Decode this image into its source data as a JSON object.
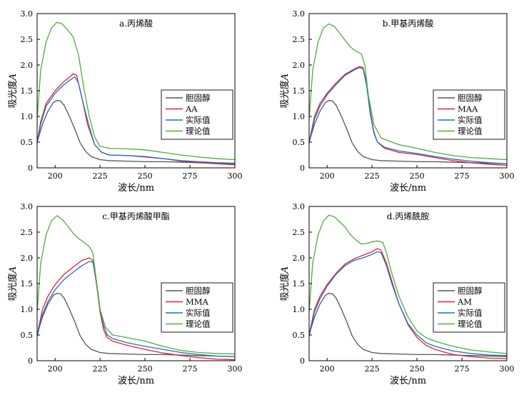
{
  "figure": {
    "colors": {
      "cholesterol": "#555555",
      "monomer": "#e8202a",
      "actual": "#1f6fc4",
      "theoretical": "#4caf3c",
      "axis": "#000000"
    }
  },
  "chart_data": [
    {
      "type": "line",
      "title": "a.丙烯酸",
      "xlabel": "波长/nm",
      "ylabel_text": "吸光度",
      "ylabel_var": "A",
      "xlim": [
        190,
        300
      ],
      "ylim": [
        0,
        3.0
      ],
      "xticks": [
        "200",
        "225",
        "250",
        "275",
        "300"
      ],
      "yticks": [
        "0",
        "0.5",
        "1.0",
        "1.5",
        "2.0",
        "2.5",
        "3.0"
      ],
      "legend_position": "center-right",
      "series": [
        {
          "name": "胆固醇",
          "color_key": "cholesterol",
          "x": [
            190,
            193,
            196,
            199,
            201,
            203,
            205,
            208,
            211,
            214,
            217,
            220,
            225,
            230,
            240,
            250,
            260,
            270,
            280,
            290,
            300
          ],
          "y": [
            0.5,
            0.85,
            1.1,
            1.27,
            1.31,
            1.3,
            1.22,
            1.0,
            0.75,
            0.48,
            0.32,
            0.22,
            0.16,
            0.14,
            0.13,
            0.12,
            0.12,
            0.11,
            0.1,
            0.09,
            0.08
          ]
        },
        {
          "name": "AA",
          "color_key": "monomer",
          "x": [
            190,
            192,
            195,
            200,
            205,
            208,
            210,
            212,
            215,
            218,
            222,
            226,
            230,
            240,
            250,
            260,
            270,
            280,
            290,
            300
          ],
          "y": [
            0.5,
            0.9,
            1.25,
            1.5,
            1.68,
            1.76,
            1.83,
            1.8,
            1.35,
            0.85,
            0.45,
            0.3,
            0.25,
            0.24,
            0.22,
            0.18,
            0.13,
            0.1,
            0.08,
            0.06
          ]
        },
        {
          "name": "实际值",
          "color_key": "actual",
          "x": [
            190,
            192,
            195,
            200,
            205,
            208,
            211,
            213,
            216,
            219,
            222,
            226,
            230,
            240,
            250,
            260,
            270,
            280,
            290,
            300
          ],
          "y": [
            0.48,
            0.85,
            1.2,
            1.45,
            1.62,
            1.7,
            1.77,
            1.65,
            1.2,
            0.8,
            0.45,
            0.3,
            0.25,
            0.24,
            0.21,
            0.18,
            0.14,
            0.12,
            0.1,
            0.09
          ]
        },
        {
          "name": "理论值",
          "color_key": "theoretical",
          "x": [
            190,
            192,
            195,
            198,
            201,
            204,
            207,
            210,
            213,
            216,
            219,
            222,
            225,
            230,
            240,
            250,
            260,
            270,
            280,
            290,
            300
          ],
          "y": [
            0.95,
            1.9,
            2.45,
            2.72,
            2.83,
            2.8,
            2.68,
            2.55,
            2.2,
            1.55,
            1.0,
            0.6,
            0.42,
            0.38,
            0.37,
            0.35,
            0.3,
            0.25,
            0.21,
            0.18,
            0.16
          ]
        }
      ]
    },
    {
      "type": "line",
      "title": "b.甲基丙烯酸",
      "xlabel": "波长/nm",
      "ylabel_text": "吸光度",
      "ylabel_var": "A",
      "xlim": [
        190,
        300
      ],
      "ylim": [
        0,
        3.0
      ],
      "xticks": [
        "200",
        "225",
        "250",
        "275",
        "300"
      ],
      "yticks": [
        "0",
        "0.5",
        "1.0",
        "1.5",
        "2.0",
        "2.5",
        "3.0"
      ],
      "legend_position": "center-right",
      "series": [
        {
          "name": "胆固醇",
          "color_key": "cholesterol",
          "x": [
            190,
            193,
            196,
            199,
            201,
            203,
            205,
            208,
            211,
            214,
            217,
            220,
            225,
            230,
            240,
            250,
            260,
            270,
            280,
            290,
            300
          ],
          "y": [
            0.5,
            0.85,
            1.1,
            1.27,
            1.31,
            1.3,
            1.22,
            1.0,
            0.75,
            0.48,
            0.32,
            0.22,
            0.16,
            0.14,
            0.13,
            0.12,
            0.12,
            0.11,
            0.1,
            0.09,
            0.08
          ]
        },
        {
          "name": "MAA",
          "color_key": "monomer",
          "x": [
            190,
            193,
            196,
            200,
            205,
            210,
            215,
            218,
            220,
            222,
            224,
            226,
            228,
            232,
            240,
            250,
            260,
            270,
            280,
            290,
            300
          ],
          "y": [
            0.5,
            1.0,
            1.25,
            1.45,
            1.65,
            1.82,
            1.92,
            1.97,
            1.95,
            1.65,
            1.1,
            0.7,
            0.5,
            0.38,
            0.3,
            0.26,
            0.2,
            0.14,
            0.1,
            0.07,
            0.05
          ]
        },
        {
          "name": "实际值",
          "color_key": "actual",
          "x": [
            190,
            193,
            196,
            200,
            205,
            210,
            215,
            218,
            220,
            222,
            224,
            226,
            228,
            232,
            240,
            250,
            260,
            270,
            280,
            290,
            300
          ],
          "y": [
            0.48,
            0.95,
            1.2,
            1.42,
            1.62,
            1.8,
            1.9,
            1.95,
            1.93,
            1.6,
            1.05,
            0.68,
            0.5,
            0.4,
            0.33,
            0.28,
            0.22,
            0.17,
            0.13,
            0.1,
            0.08
          ]
        },
        {
          "name": "理论值",
          "color_key": "theoretical",
          "x": [
            190,
            192,
            195,
            198,
            201,
            204,
            207,
            210,
            213,
            216,
            219,
            221,
            223,
            226,
            230,
            240,
            250,
            260,
            270,
            280,
            290,
            300
          ],
          "y": [
            0.95,
            1.9,
            2.45,
            2.72,
            2.8,
            2.75,
            2.62,
            2.48,
            2.35,
            2.27,
            2.22,
            2.0,
            1.4,
            0.85,
            0.58,
            0.45,
            0.38,
            0.3,
            0.24,
            0.2,
            0.18,
            0.16
          ]
        }
      ]
    },
    {
      "type": "line",
      "title": "c.甲基丙烯酸甲酯",
      "xlabel": "波长/nm",
      "ylabel_text": "吸光度",
      "ylabel_var": "A",
      "xlim": [
        190,
        300
      ],
      "ylim": [
        0,
        3.0
      ],
      "xticks": [
        "200",
        "225",
        "250",
        "275",
        "300"
      ],
      "yticks": [
        "0",
        "0.5",
        "1.0",
        "1.5",
        "2.0",
        "2.5",
        "3.0"
      ],
      "legend_position": "center-right",
      "series": [
        {
          "name": "胆固醇",
          "color_key": "cholesterol",
          "x": [
            190,
            193,
            196,
            199,
            201,
            203,
            205,
            208,
            211,
            214,
            217,
            220,
            225,
            230,
            240,
            250,
            260,
            270,
            280,
            290,
            300
          ],
          "y": [
            0.5,
            0.85,
            1.1,
            1.27,
            1.31,
            1.3,
            1.22,
            1.0,
            0.75,
            0.48,
            0.32,
            0.22,
            0.16,
            0.14,
            0.13,
            0.12,
            0.12,
            0.11,
            0.1,
            0.09,
            0.08
          ]
        },
        {
          "name": "MMA",
          "color_key": "monomer",
          "x": [
            190,
            193,
            196,
            200,
            205,
            210,
            215,
            219,
            221,
            223,
            225,
            227,
            229,
            232,
            240,
            250,
            260,
            270,
            280,
            290,
            300
          ],
          "y": [
            0.5,
            1.0,
            1.25,
            1.48,
            1.68,
            1.82,
            1.95,
            2.0,
            1.95,
            1.5,
            0.95,
            0.6,
            0.45,
            0.38,
            0.3,
            0.22,
            0.15,
            0.1,
            0.06,
            0.03,
            0.02
          ]
        },
        {
          "name": "实际值",
          "color_key": "actual",
          "x": [
            190,
            193,
            196,
            200,
            205,
            210,
            215,
            219,
            221,
            223,
            225,
            227,
            229,
            232,
            240,
            250,
            260,
            270,
            280,
            290,
            300
          ],
          "y": [
            0.48,
            0.9,
            1.15,
            1.38,
            1.58,
            1.72,
            1.85,
            1.93,
            1.92,
            1.55,
            1.0,
            0.68,
            0.5,
            0.43,
            0.35,
            0.28,
            0.22,
            0.16,
            0.12,
            0.09,
            0.08
          ]
        },
        {
          "name": "理论值",
          "color_key": "theoretical",
          "x": [
            190,
            192,
            195,
            198,
            201,
            204,
            207,
            210,
            213,
            216,
            219,
            221,
            223,
            225,
            228,
            232,
            240,
            250,
            260,
            270,
            280,
            290,
            300
          ],
          "y": [
            0.95,
            1.9,
            2.45,
            2.72,
            2.82,
            2.75,
            2.62,
            2.48,
            2.38,
            2.3,
            2.22,
            2.1,
            1.55,
            1.0,
            0.65,
            0.5,
            0.45,
            0.38,
            0.28,
            0.2,
            0.16,
            0.14,
            0.13
          ]
        }
      ]
    },
    {
      "type": "line",
      "title": "d.丙烯酰胺",
      "xlabel": "波长/nm",
      "ylabel_text": "吸光度",
      "ylabel_var": "A",
      "xlim": [
        190,
        300
      ],
      "ylim": [
        0,
        3.0
      ],
      "xticks": [
        "200",
        "225",
        "250",
        "275",
        "300"
      ],
      "yticks": [
        "0",
        "0.5",
        "1.0",
        "1.5",
        "2.0",
        "2.5",
        "3.0"
      ],
      "legend_position": "center-right",
      "series": [
        {
          "name": "胆固醇",
          "color_key": "cholesterol",
          "x": [
            190,
            193,
            196,
            199,
            201,
            203,
            205,
            208,
            211,
            214,
            217,
            220,
            225,
            230,
            240,
            250,
            260,
            270,
            280,
            290,
            300
          ],
          "y": [
            0.5,
            0.85,
            1.1,
            1.27,
            1.31,
            1.3,
            1.22,
            1.0,
            0.75,
            0.48,
            0.32,
            0.22,
            0.16,
            0.14,
            0.13,
            0.12,
            0.12,
            0.11,
            0.1,
            0.09,
            0.08
          ]
        },
        {
          "name": "AM",
          "color_key": "monomer",
          "x": [
            190,
            193,
            196,
            200,
            205,
            210,
            215,
            220,
            225,
            228,
            230,
            233,
            236,
            240,
            245,
            250,
            255,
            260,
            270,
            280,
            290,
            300
          ],
          "y": [
            0.5,
            1.0,
            1.25,
            1.48,
            1.7,
            1.88,
            1.98,
            2.05,
            2.12,
            2.18,
            2.15,
            1.9,
            1.55,
            1.1,
            0.7,
            0.45,
            0.3,
            0.22,
            0.12,
            0.08,
            0.05,
            0.04
          ]
        },
        {
          "name": "实际值",
          "color_key": "actual",
          "x": [
            190,
            193,
            196,
            200,
            205,
            210,
            215,
            220,
            225,
            228,
            230,
            233,
            236,
            240,
            245,
            250,
            255,
            260,
            270,
            280,
            290,
            300
          ],
          "y": [
            0.48,
            0.95,
            1.2,
            1.45,
            1.68,
            1.85,
            1.95,
            2.0,
            2.07,
            2.12,
            2.1,
            1.85,
            1.5,
            1.1,
            0.72,
            0.5,
            0.35,
            0.28,
            0.19,
            0.14,
            0.11,
            0.1
          ]
        },
        {
          "name": "理论值",
          "color_key": "theoretical",
          "x": [
            190,
            192,
            195,
            198,
            201,
            204,
            207,
            210,
            213,
            216,
            219,
            222,
            225,
            228,
            231,
            233,
            236,
            240,
            245,
            250,
            255,
            260,
            270,
            280,
            290,
            300
          ],
          "y": [
            0.95,
            1.9,
            2.45,
            2.72,
            2.83,
            2.8,
            2.7,
            2.6,
            2.45,
            2.35,
            2.27,
            2.28,
            2.31,
            2.33,
            2.3,
            2.1,
            1.7,
            1.25,
            0.85,
            0.58,
            0.45,
            0.38,
            0.28,
            0.21,
            0.17,
            0.14
          ]
        }
      ]
    }
  ]
}
